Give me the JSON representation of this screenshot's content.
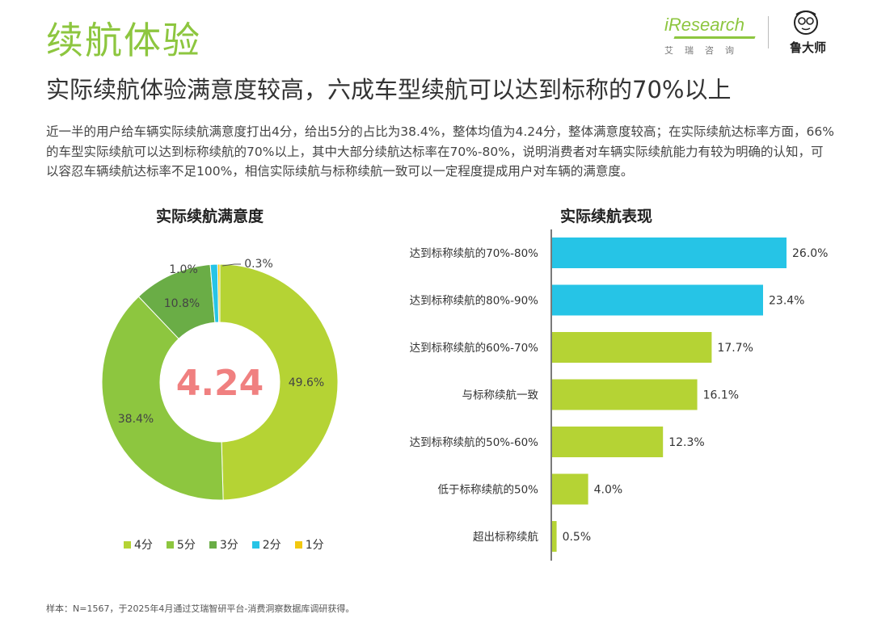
{
  "header": {
    "title": "续航体验",
    "subtitle": "实际续航体验满意度较高，六成车型续航可以达到标称的70%以上",
    "description": "近一半的用户给车辆实际续航满意度打出4分，给出5分的占比为38.4%，整体均值为4.24分，整体满意度较高；在实际续航达标率方面，66%的车型实际续航可以达到标称续航的70%以上，其中大部分续航达标率在70%-80%，说明消费者对车辆实际续航能力有较为明确的认知，可以容忍车辆续航达标率不足100%，相信实际续航与标称续航一致可以一定程度提成用户对车辆的满意度。"
  },
  "logos": {
    "iresearch": "iResearch",
    "iresearch_cn": "艾瑞咨询",
    "ludashi": "鲁大师"
  },
  "chart_data": [
    {
      "type": "pie",
      "title": "实际续航满意度",
      "center_label": "4.24",
      "categories": [
        "4分",
        "5分",
        "3分",
        "2分",
        "1分"
      ],
      "values": [
        49.6,
        38.4,
        10.8,
        1.0,
        0.3
      ],
      "labels": [
        "49.6%",
        "38.4%",
        "10.8%",
        "1.0%",
        "0.3%"
      ],
      "colors": [
        "#b5d334",
        "#8dc63f",
        "#6aad46",
        "#26c4e6",
        "#f2c80f"
      ]
    },
    {
      "type": "bar",
      "orientation": "horizontal",
      "title": "实际续航表现",
      "categories": [
        "达到标称续航的70%-80%",
        "达到标称续航的80%-90%",
        "达到标称续航的60%-70%",
        "与标称续航一致",
        "达到标称续航的50%-60%",
        "低于标称续航的50%",
        "超出标称续航"
      ],
      "values": [
        26.0,
        23.4,
        17.7,
        16.1,
        12.3,
        4.0,
        0.5
      ],
      "labels": [
        "26.0%",
        "23.4%",
        "17.7%",
        "16.1%",
        "12.3%",
        "4.0%",
        "0.5%"
      ],
      "colors": [
        "#26c4e6",
        "#26c4e6",
        "#b5d334",
        "#b5d334",
        "#b5d334",
        "#b5d334",
        "#b5d334"
      ]
    }
  ],
  "colors": {
    "accent_green": "#8dc63f",
    "center_value": "#f08080"
  },
  "footer": {
    "note": "样本：N=1567，于2025年4月通过艾瑞智研平台-消费洞察数据库调研获得。"
  }
}
